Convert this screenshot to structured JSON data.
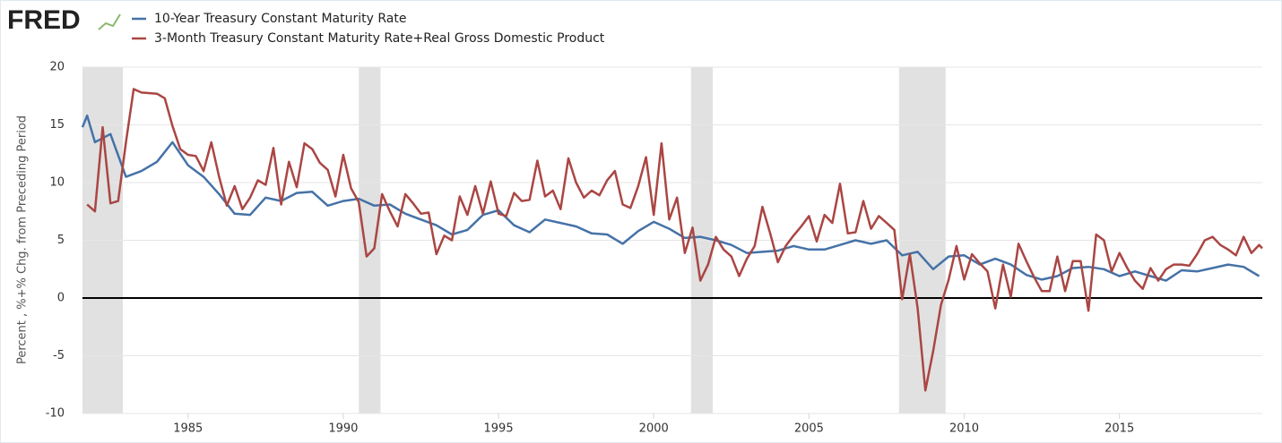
{
  "chart_data": {
    "type": "line",
    "logo": "FRED",
    "y_label": "Percent , %+% Chg. from Preceding Period",
    "xlim": [
      1981.6,
      2019.6
    ],
    "xticks": [
      1985,
      1990,
      1995,
      2000,
      2005,
      2010,
      2015
    ],
    "ylim": [
      -10,
      20
    ],
    "yticks": [
      -10,
      -5,
      0,
      5,
      10,
      15,
      20
    ],
    "grid": true,
    "zero_line": true,
    "legend": "top-left",
    "recession_color": "#e1e1e1",
    "recessions": [
      [
        1981.6,
        1982.9
      ],
      [
        1990.5,
        1991.2
      ],
      [
        2001.2,
        2001.9
      ],
      [
        2007.9,
        2009.4
      ]
    ],
    "series": [
      {
        "name": "10-Year Treasury Constant Maturity Rate",
        "color": "#4572a7",
        "x": [
          1981.6,
          1981.75,
          1982.0,
          1982.5,
          1983.0,
          1983.5,
          1984.0,
          1984.5,
          1985.0,
          1985.5,
          1986.0,
          1986.5,
          1987.0,
          1987.5,
          1988.0,
          1988.5,
          1989.0,
          1989.5,
          1990.0,
          1990.5,
          1991.0,
          1991.5,
          1992.0,
          1992.5,
          1993.0,
          1993.5,
          1994.0,
          1994.5,
          1995.0,
          1995.5,
          1996.0,
          1996.5,
          1997.0,
          1997.5,
          1998.0,
          1998.5,
          1999.0,
          1999.5,
          2000.0,
          2000.5,
          2001.0,
          2001.5,
          2002.0,
          2002.5,
          2003.0,
          2003.5,
          2004.0,
          2004.5,
          2005.0,
          2005.5,
          2006.0,
          2006.5,
          2007.0,
          2007.5,
          2008.0,
          2008.5,
          2009.0,
          2009.5,
          2010.0,
          2010.5,
          2011.0,
          2011.5,
          2012.0,
          2012.5,
          2013.0,
          2013.5,
          2014.0,
          2014.5,
          2015.0,
          2015.5,
          2016.0,
          2016.5,
          2017.0,
          2017.5,
          2018.0,
          2018.5,
          2019.0,
          2019.5
        ],
        "values": [
          14.8,
          15.8,
          13.5,
          14.2,
          10.5,
          11.0,
          11.8,
          13.5,
          11.5,
          10.5,
          9.0,
          7.3,
          7.2,
          8.7,
          8.4,
          9.1,
          9.2,
          8.0,
          8.4,
          8.6,
          8.0,
          8.1,
          7.3,
          6.8,
          6.3,
          5.5,
          5.9,
          7.2,
          7.6,
          6.3,
          5.7,
          6.8,
          6.5,
          6.2,
          5.6,
          5.5,
          4.7,
          5.8,
          6.6,
          6.0,
          5.2,
          5.3,
          5.0,
          4.6,
          3.9,
          4.0,
          4.1,
          4.5,
          4.2,
          4.2,
          4.6,
          5.0,
          4.7,
          5.0,
          3.7,
          4.0,
          2.5,
          3.6,
          3.7,
          2.9,
          3.4,
          2.9,
          2.0,
          1.6,
          1.9,
          2.6,
          2.7,
          2.5,
          1.9,
          2.3,
          1.9,
          1.5,
          2.4,
          2.3,
          2.6,
          2.9,
          2.7,
          1.9
        ]
      },
      {
        "name": "3-Month Treasury Constant Maturity Rate+Real Gross Domestic Product",
        "color": "#aa4643",
        "x": [
          1981.75,
          1982.0,
          1982.25,
          1982.5,
          1982.75,
          1983.0,
          1983.25,
          1983.5,
          1984.0,
          1984.25,
          1984.5,
          1984.75,
          1985.0,
          1985.25,
          1985.5,
          1985.75,
          1986.0,
          1986.25,
          1986.5,
          1986.75,
          1987.0,
          1987.25,
          1987.5,
          1987.75,
          1988.0,
          1988.25,
          1988.5,
          1988.75,
          1989.0,
          1989.25,
          1989.5,
          1989.75,
          1990.0,
          1990.25,
          1990.5,
          1990.75,
          1991.0,
          1991.25,
          1991.5,
          1991.75,
          1992.0,
          1992.25,
          1992.5,
          1992.75,
          1993.0,
          1993.25,
          1993.5,
          1993.75,
          1994.0,
          1994.25,
          1994.5,
          1994.75,
          1995.0,
          1995.25,
          1995.5,
          1995.75,
          1996.0,
          1996.25,
          1996.5,
          1996.75,
          1997.0,
          1997.25,
          1997.5,
          1997.75,
          1998.0,
          1998.25,
          1998.5,
          1998.75,
          1999.0,
          1999.25,
          1999.5,
          1999.75,
          2000.0,
          2000.25,
          2000.5,
          2000.75,
          2001.0,
          2001.25,
          2001.5,
          2001.75,
          2002.0,
          2002.25,
          2002.5,
          2002.75,
          2003.0,
          2003.25,
          2003.5,
          2003.75,
          2004.0,
          2004.25,
          2004.5,
          2004.75,
          2005.0,
          2005.25,
          2005.5,
          2005.75,
          2006.0,
          2006.25,
          2006.5,
          2006.75,
          2007.0,
          2007.25,
          2007.5,
          2007.75,
          2008.0,
          2008.25,
          2008.5,
          2008.75,
          2009.0,
          2009.25,
          2009.5,
          2009.75,
          2010.0,
          2010.25,
          2010.5,
          2010.75,
          2011.0,
          2011.25,
          2011.5,
          2011.75,
          2012.0,
          2012.25,
          2012.5,
          2012.75,
          2013.0,
          2013.25,
          2013.5,
          2013.75,
          2014.0,
          2014.25,
          2014.5,
          2014.75,
          2015.0,
          2015.25,
          2015.5,
          2015.75,
          2016.0,
          2016.25,
          2016.5,
          2016.75,
          2017.0,
          2017.25,
          2017.5,
          2017.75,
          2018.0,
          2018.25,
          2018.5,
          2018.75,
          2019.0,
          2019.25,
          2019.5,
          2019.6
        ],
        "values": [
          8.1,
          7.5,
          14.8,
          8.2,
          8.4,
          13.5,
          18.1,
          17.8,
          17.7,
          17.3,
          14.9,
          12.9,
          12.4,
          12.3,
          11.0,
          13.5,
          10.5,
          8.0,
          9.7,
          7.7,
          8.7,
          10.2,
          9.8,
          13.0,
          8.1,
          11.8,
          9.6,
          13.4,
          12.9,
          11.7,
          11.1,
          8.8,
          12.4,
          9.5,
          8.3,
          3.6,
          4.3,
          9.0,
          7.5,
          6.2,
          9.0,
          8.2,
          7.3,
          7.4,
          3.8,
          5.4,
          5.0,
          8.8,
          7.2,
          9.7,
          7.3,
          10.1,
          7.3,
          7.1,
          9.1,
          8.4,
          8.5,
          11.9,
          8.8,
          9.3,
          7.7,
          12.1,
          10.0,
          8.7,
          9.3,
          8.9,
          10.2,
          11.0,
          8.1,
          7.8,
          9.7,
          12.2,
          7.2,
          13.4,
          6.8,
          8.7,
          3.9,
          6.1,
          1.5,
          2.9,
          5.3,
          4.2,
          3.6,
          1.9,
          3.4,
          4.5,
          7.9,
          5.6,
          3.1,
          4.5,
          5.4,
          6.2,
          7.1,
          4.9,
          7.2,
          6.5,
          9.9,
          5.6,
          5.7,
          8.4,
          6.0,
          7.1,
          6.5,
          5.9,
          -0.1,
          3.8,
          -0.9,
          -8.0,
          -4.6,
          -0.6,
          1.6,
          4.5,
          1.6,
          3.8,
          3.0,
          2.3,
          -0.9,
          2.9,
          0.1,
          4.7,
          3.2,
          1.8,
          0.6,
          0.6,
          3.6,
          0.6,
          3.2,
          3.2,
          -1.1,
          5.5,
          5.0,
          2.3,
          3.9,
          2.6,
          1.5,
          0.8,
          2.6,
          1.5,
          2.5,
          2.9,
          2.9,
          2.8,
          3.8,
          5.0,
          5.3,
          4.6,
          4.2,
          3.7,
          5.3,
          3.9,
          4.6,
          4.3
        ]
      }
    ]
  }
}
